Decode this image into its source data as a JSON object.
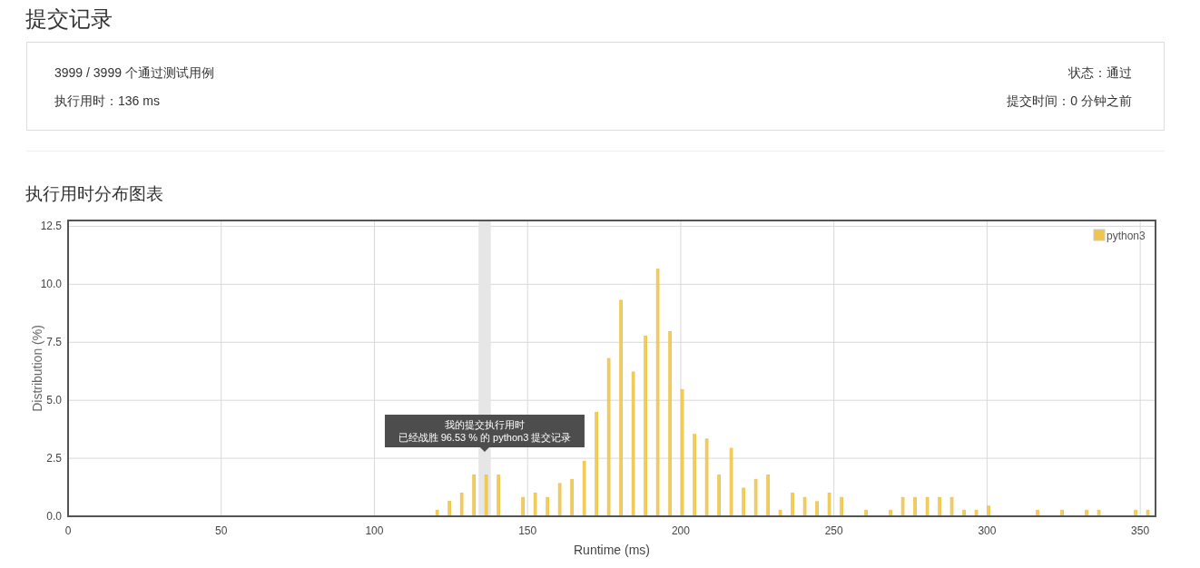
{
  "chart_data": {
    "type": "bar",
    "title": "提交记录",
    "subtitle": "执行用时分布图表",
    "xlabel": "Runtime (ms)",
    "ylabel": "Distribution (%)",
    "annotations": [
      "3999 / 3999 个通过测试用例",
      "执行用时：136 ms",
      "状态：通过",
      "提交时间：0 分钟之前",
      "我的提交执行用时",
      "已经战胜 96.53 % 的 python3 提交记录"
    ],
    "series": [
      {
        "name": "python3",
        "color": "#efc54a",
        "x": [
          120.5,
          124.5,
          128.5,
          132.5,
          136.5,
          140.5,
          148.5,
          152.5,
          156.5,
          160.5,
          164.5,
          168.5,
          172.5,
          176.5,
          180.5,
          184.5,
          188.5,
          192.5,
          196.5,
          200.5,
          204.5,
          208.5,
          212.5,
          216.5,
          220.5,
          224.5,
          228.5,
          232.5,
          236.5,
          240.5,
          244.5,
          248.5,
          252.5,
          260.5,
          268.5,
          272.5,
          276.5,
          280.5,
          284.5,
          288.5,
          292.5,
          296.5,
          300.5,
          316.5,
          324.5,
          332.5,
          336.5,
          348.5,
          352.5
        ],
        "values": [
          0.26,
          0.65,
          1.0,
          1.78,
          1.78,
          1.78,
          0.81,
          1.0,
          0.81,
          1.41,
          1.59,
          2.37,
          4.48,
          6.8,
          9.31,
          6.22,
          7.77,
          10.65,
          7.96,
          5.46,
          3.53,
          3.33,
          1.78,
          2.93,
          1.21,
          1.59,
          1.78,
          0.26,
          1.0,
          0.81,
          0.63,
          1.0,
          0.81,
          0.26,
          0.26,
          0.81,
          0.81,
          0.81,
          0.81,
          0.81,
          0.26,
          0.26,
          0.44,
          0.26,
          0.26,
          0.26,
          0.26,
          0.26,
          0.26
        ]
      }
    ],
    "xlim": [
      0,
      355
    ],
    "xticks": [
      0,
      50,
      100,
      150,
      200,
      250,
      300,
      350
    ],
    "ylim": [
      0,
      12.75
    ],
    "yticks": [
      {
        "value": 0,
        "label": "0.0"
      },
      2.5,
      {
        "value": 5,
        "label": "5.0"
      },
      7.5,
      {
        "value": 10,
        "label": "10.0"
      },
      12.5
    ],
    "bands": [
      {
        "axis": "x",
        "from": 134,
        "to": 138,
        "color": "#e6e6e6"
      }
    ],
    "grid": true,
    "legend": "top right"
  }
}
